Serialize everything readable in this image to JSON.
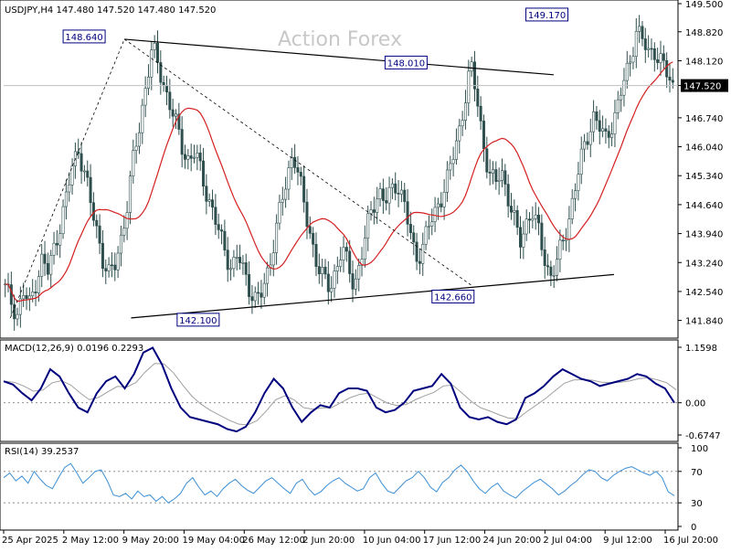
{
  "header": {
    "symbol_line": "USDJPY,H4  147.480 147.520 147.480 147.520",
    "watermark": "Action Forex"
  },
  "colors": {
    "candle": "#2f4f4f",
    "ma": "#d42020",
    "macd": "#00007f",
    "signal": "#a0a0a0",
    "rsi": "#3b8fd6",
    "trendline": "#000000",
    "price_tag_bg": "#000000",
    "price_tag_text": "#ffffff",
    "label_border": "#00007f"
  },
  "chart_data": [
    {
      "type": "candlestick",
      "panel": "price",
      "title": "USDJPY,H4",
      "ohlc_header": {
        "open": 147.48,
        "high": 147.52,
        "low": 147.48,
        "close": 147.52
      },
      "ylim": [
        141.5,
        149.5
      ],
      "y_ticks": [
        "149.500",
        "148.820",
        "148.120",
        "147.520",
        "146.740",
        "146.040",
        "145.340",
        "144.640",
        "143.940",
        "143.240",
        "142.540",
        "141.840"
      ],
      "current_price": "147.520",
      "x_ticks": [
        "25 Apr 2025",
        "2 May 12:00",
        "9 May 20:00",
        "19 May 04:00",
        "26 May 12:00",
        "2 Jun 20:00",
        "10 Jun 04:00",
        "17 Jun 12:00",
        "24 Jun 20:00",
        "2 Jul 04:00",
        "9 Jul 12:00",
        "16 Jul 20:00"
      ],
      "series_close": [
        142.6,
        142.3,
        142.0,
        142.5,
        142.2,
        142.8,
        143.3,
        143.0,
        143.6,
        144.2,
        144.8,
        145.6,
        146.0,
        145.4,
        144.6,
        144.0,
        143.3,
        142.9,
        143.2,
        143.9,
        144.7,
        145.8,
        146.6,
        147.6,
        148.4,
        148.0,
        147.5,
        147.0,
        146.5,
        146.0,
        145.7,
        145.9,
        145.4,
        144.9,
        144.4,
        143.9,
        143.5,
        143.1,
        143.4,
        143.0,
        142.6,
        142.3,
        142.5,
        143.1,
        143.9,
        144.6,
        145.2,
        146.0,
        145.3,
        144.4,
        143.8,
        143.2,
        142.8,
        142.6,
        143.1,
        143.6,
        143.1,
        142.7,
        143.3,
        144.0,
        144.6,
        145.0,
        144.7,
        144.9,
        145.2,
        144.8,
        144.0,
        143.3,
        143.6,
        144.1,
        144.3,
        144.8,
        145.2,
        145.7,
        146.3,
        147.2,
        148.0,
        147.2,
        146.2,
        145.4,
        145.1,
        145.5,
        144.9,
        144.3,
        143.7,
        144.2,
        144.5,
        144.0,
        143.4,
        142.9,
        143.2,
        143.7,
        144.3,
        145.0,
        145.7,
        146.3,
        146.8,
        146.5,
        146.2,
        146.6,
        147.0,
        147.6,
        148.1,
        148.9,
        148.6,
        148.3,
        148.4,
        148.1,
        147.8,
        147.5
      ],
      "ma_label": "",
      "trendlines": [
        {
          "from": [
            0.18,
            148.64
          ],
          "to": [
            0.82,
            147.78
          ]
        },
        {
          "from": [
            0.19,
            141.9
          ],
          "to": [
            0.91,
            142.95
          ]
        },
        {
          "from": [
            0.18,
            148.64
          ],
          "to": [
            0.7,
            142.66
          ],
          "dashed": true
        },
        {
          "from": [
            0.01,
            141.9
          ],
          "to": [
            0.18,
            148.64
          ],
          "dashed": true
        }
      ],
      "annotations": [
        {
          "text": "148.640",
          "price": 148.64
        },
        {
          "text": "148.010",
          "price": 148.01
        },
        {
          "text": "149.170",
          "price": 149.17
        },
        {
          "text": "142.100",
          "price": 142.1
        },
        {
          "text": "142.660",
          "price": 142.66
        }
      ]
    },
    {
      "type": "line",
      "panel": "macd",
      "title": "MACD(12,26,9) 0.0196 0.2293",
      "ylim": [
        -0.6747,
        1.1598
      ],
      "y_ticks": [
        "1.1598",
        "0.00",
        "-0.6747"
      ],
      "series": [
        {
          "name": "MACD",
          "values": [
            0.45,
            0.38,
            0.2,
            0.05,
            0.3,
            0.7,
            0.55,
            0.2,
            -0.1,
            -0.2,
            0.2,
            0.45,
            0.55,
            0.3,
            0.6,
            1.05,
            1.15,
            0.8,
            0.3,
            -0.1,
            -0.3,
            -0.35,
            -0.4,
            -0.45,
            -0.55,
            -0.6,
            -0.5,
            -0.2,
            0.2,
            0.5,
            0.3,
            -0.1,
            -0.4,
            -0.2,
            -0.05,
            -0.1,
            0.2,
            0.3,
            0.3,
            0.25,
            -0.1,
            -0.2,
            -0.15,
            0.0,
            0.25,
            0.3,
            0.35,
            0.6,
            0.4,
            -0.1,
            -0.3,
            -0.35,
            -0.3,
            -0.4,
            -0.45,
            -0.35,
            0.1,
            0.2,
            0.35,
            0.55,
            0.7,
            0.6,
            0.5,
            0.45,
            0.35,
            0.4,
            0.45,
            0.5,
            0.6,
            0.55,
            0.4,
            0.3,
            0.0
          ],
          "_unused": null
        }
      ]
    },
    {
      "type": "line",
      "panel": "rsi",
      "title": "RSI(14) 39.2537",
      "ylim": [
        0,
        100
      ],
      "y_ticks": [
        "100",
        "70",
        "30",
        "0"
      ],
      "series": [
        {
          "name": "RSI",
          "values": [
            62,
            68,
            58,
            64,
            55,
            70,
            60,
            52,
            48,
            62,
            75,
            80,
            68,
            55,
            62,
            70,
            72,
            58,
            40,
            38,
            42,
            35,
            45,
            38,
            40,
            32,
            38,
            30,
            35,
            42,
            55,
            62,
            50,
            40,
            45,
            38,
            48,
            55,
            60,
            52,
            46,
            42,
            50,
            58,
            62,
            55,
            48,
            42,
            55,
            60,
            48,
            40,
            44,
            52,
            58,
            62,
            55,
            50,
            45,
            48,
            62,
            68,
            55,
            45,
            42,
            50,
            58,
            62,
            70,
            62,
            50,
            44,
            56,
            62,
            72,
            78,
            70,
            58,
            48,
            42,
            50,
            55,
            45,
            40,
            36,
            44,
            50,
            56,
            60,
            54,
            48,
            40,
            45,
            52,
            58,
            66,
            72,
            70,
            62,
            58,
            65,
            70,
            74,
            76,
            72,
            68,
            65,
            70,
            62,
            44,
            39
          ]
        }
      ]
    }
  ]
}
